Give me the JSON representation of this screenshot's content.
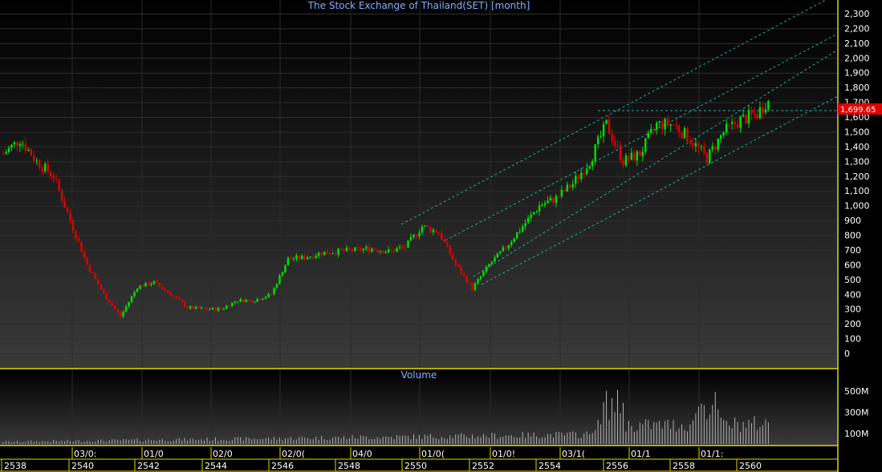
{
  "chart_data": {
    "type": "candlestick",
    "title": "The Stock Exchange of Thailand(SET) [month]",
    "volume_title": "Volume",
    "last_value_label": "1,699.65",
    "y_ticks": [
      2300,
      2200,
      2100,
      2000,
      1900,
      1800,
      1700,
      1600,
      1500,
      1400,
      1300,
      1200,
      1100,
      1000,
      900,
      800,
      700,
      600,
      500,
      400,
      300,
      200,
      100,
      0
    ],
    "y_tick_labels": [
      "2,300",
      "2,200",
      "2,100",
      "2,000",
      "1,900",
      "1,800",
      "1,700",
      "1,600",
      "1,500",
      "1,400",
      "1,300",
      "1,200",
      "1,100",
      "1,000",
      "900",
      "800",
      "700",
      "600",
      "500",
      "400",
      "300",
      "200",
      "100",
      "0"
    ],
    "volume_ticks": [
      500,
      300,
      100
    ],
    "volume_tick_labels": [
      "500M",
      "300M",
      "100M"
    ],
    "x_top_labels": [
      "03/0:",
      "01/0",
      "02/0",
      "02/0(",
      "04/0",
      "01/0(",
      "01/0!",
      "03/1(",
      "01/1",
      "01/1:"
    ],
    "x_bottom_labels": [
      "2538",
      "2540",
      "2542",
      "2544",
      "2546",
      "2548",
      "2550",
      "2552",
      "2554",
      "2556",
      "2558",
      "2560"
    ],
    "ylim": [
      0,
      2300
    ],
    "monthly_close": [
      [
        1995.0,
        1350
      ],
      [
        1995.5,
        1450
      ],
      [
        1996.0,
        1300
      ],
      [
        1996.5,
        1200
      ],
      [
        1997.0,
        900
      ],
      [
        1997.5,
        600
      ],
      [
        1998.0,
        400
      ],
      [
        1998.5,
        250
      ],
      [
        1999.0,
        450
      ],
      [
        1999.5,
        480
      ],
      [
        2000.0,
        400
      ],
      [
        2000.5,
        310
      ],
      [
        2001.0,
        300
      ],
      [
        2001.5,
        300
      ],
      [
        2002.0,
        360
      ],
      [
        2002.5,
        360
      ],
      [
        2003.0,
        400
      ],
      [
        2003.5,
        640
      ],
      [
        2004.0,
        650
      ],
      [
        2004.5,
        680
      ],
      [
        2005.0,
        690
      ],
      [
        2005.5,
        700
      ],
      [
        2006.0,
        710
      ],
      [
        2006.5,
        690
      ],
      [
        2007.0,
        720
      ],
      [
        2007.5,
        860
      ],
      [
        2008.0,
        820
      ],
      [
        2008.5,
        600
      ],
      [
        2009.0,
        440
      ],
      [
        2009.5,
        600
      ],
      [
        2010.0,
        720
      ],
      [
        2010.5,
        860
      ],
      [
        2011.0,
        1000
      ],
      [
        2011.5,
        1050
      ],
      [
        2012.0,
        1150
      ],
      [
        2012.5,
        1300
      ],
      [
        2013.0,
        1550
      ],
      [
        2013.5,
        1300
      ],
      [
        2014.0,
        1350
      ],
      [
        2014.5,
        1550
      ],
      [
        2015.0,
        1550
      ],
      [
        2015.5,
        1450
      ],
      [
        2016.0,
        1320
      ],
      [
        2016.5,
        1500
      ],
      [
        2017.0,
        1580
      ],
      [
        2017.5,
        1620
      ],
      [
        2017.75,
        1700
      ]
    ]
  }
}
